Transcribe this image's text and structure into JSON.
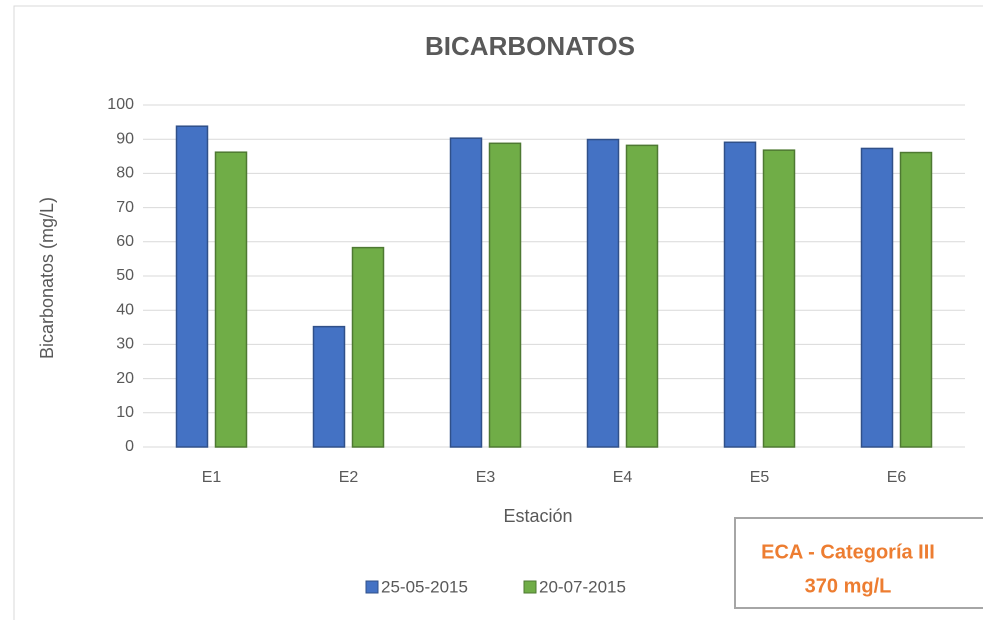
{
  "chart_data": {
    "type": "bar",
    "title": "BICARBONATOS",
    "x_label": "Estación",
    "y_label": "Bicarbonatos (mg/L)",
    "categories": [
      "E1",
      "E2",
      "E3",
      "E4",
      "E5",
      "E6"
    ],
    "series": [
      {
        "name": "25-05-2015",
        "color": "#4472c4",
        "values": [
          93.8,
          35.2,
          90.3,
          89.9,
          89.1,
          87.3
        ]
      },
      {
        "name": "20-07-2015",
        "color": "#70ad47",
        "values": [
          86.2,
          58.3,
          88.8,
          88.2,
          86.8,
          86.1
        ]
      }
    ],
    "ylim": [
      0,
      100
    ],
    "yticks": [
      0,
      10,
      20,
      30,
      40,
      50,
      60,
      70,
      80,
      90,
      100
    ],
    "grid": true,
    "legend": "bottom",
    "annotation": [
      "ECA - Categoría III",
      "370 mg/L"
    ]
  }
}
